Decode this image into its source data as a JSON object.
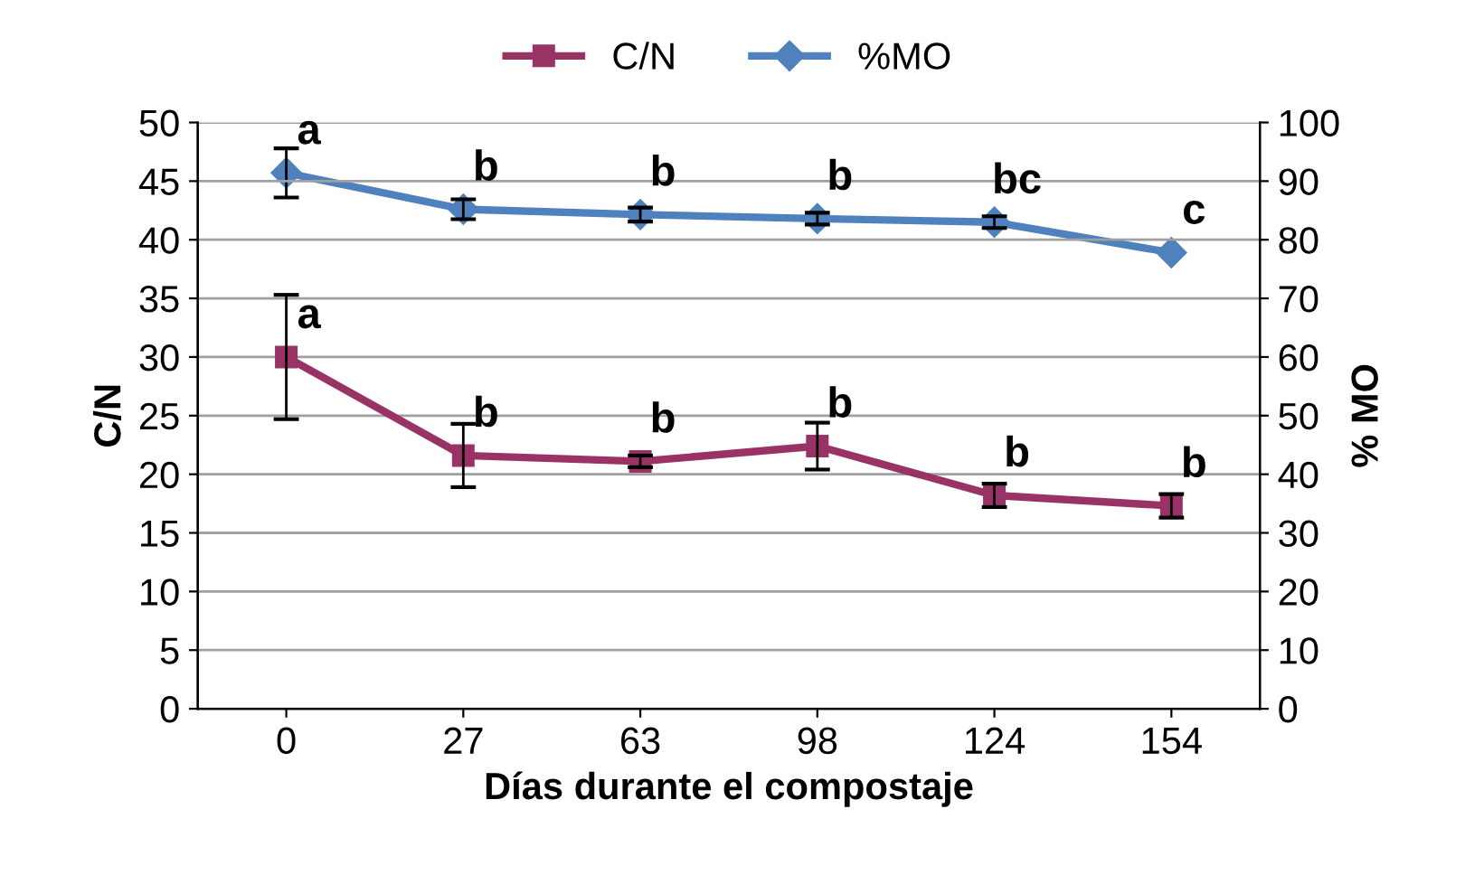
{
  "chart_data": {
    "type": "line",
    "xlabel": "Días durante el compostaje",
    "ylabel": "C/N",
    "y2label": "% MO",
    "categories": [
      "0",
      "27",
      "63",
      "98",
      "124",
      "154"
    ],
    "series": [
      {
        "name": "C/N",
        "color": "#993366",
        "values": [
          30,
          21.6,
          21.1,
          22.4,
          18.2,
          17.3
        ],
        "errors": [
          5.3,
          2.7,
          0.5,
          2,
          1,
          1
        ],
        "marker": "square"
      },
      {
        "name": "%MO",
        "color": "#4f81bd",
        "axis": "y2",
        "values": [
          91.4,
          85.2,
          84.3,
          83.6,
          83,
          77.8
        ],
        "errors": [
          4.2,
          1.7,
          1.2,
          1,
          1,
          null
        ],
        "marker": "diamond"
      }
    ],
    "ylim": [
      0,
      50
    ],
    "yticks": [
      0,
      5,
      10,
      15,
      20,
      25,
      30,
      35,
      40,
      45,
      50
    ],
    "y2lim": [
      0,
      100
    ],
    "y2ticks": [
      0,
      10,
      20,
      30,
      40,
      50,
      60,
      70,
      80,
      90,
      100
    ],
    "grid": "y",
    "legend": "top",
    "line_style": "solid",
    "annotations": [
      {
        "text": "a",
        "x": "0",
        "y": 30
      },
      {
        "text": "b",
        "x": "27",
        "y": 21.6
      },
      {
        "text": "b",
        "x": "63",
        "y": 21.1
      },
      {
        "text": "b",
        "x": "98",
        "y": 22.4
      },
      {
        "text": "b",
        "x": "124",
        "y": 18.2
      },
      {
        "text": "b",
        "x": "154",
        "y": 17.3
      },
      {
        "text": "a",
        "x": "0",
        "y": 45.7
      },
      {
        "text": "b",
        "x": "27",
        "y": 42.6
      },
      {
        "text": "b",
        "x": "63",
        "y": 42.15
      },
      {
        "text": "b",
        "x": "98",
        "y": 41.8
      },
      {
        "text": "bc",
        "x": "124",
        "y": 41.5
      },
      {
        "text": "c",
        "x": "154",
        "y": 38.9
      }
    ]
  }
}
